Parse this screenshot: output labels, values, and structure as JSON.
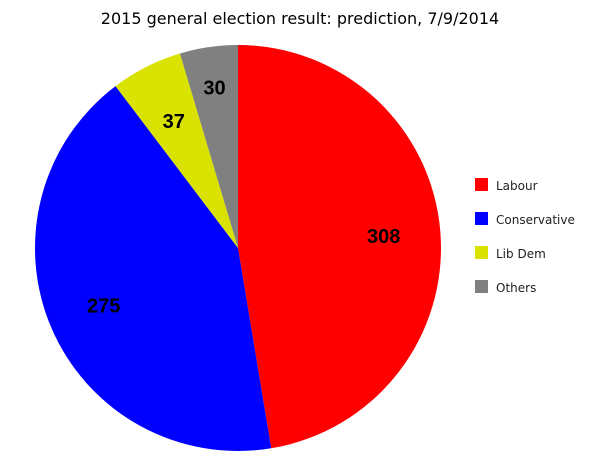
{
  "chart_data": {
    "type": "pie",
    "title": "2015 general election result: prediction, 7/9/2014",
    "categories": [
      "Labour",
      "Conservative",
      "Lib Dem",
      "Others"
    ],
    "values": [
      308,
      275,
      37,
      30
    ],
    "colors": [
      "#ff0000",
      "#0000ff",
      "#d9e200",
      "#808080"
    ],
    "start": "top",
    "direction": "clockwise",
    "legend_placement": "right",
    "data_labels": [
      "308",
      "275",
      "37",
      "30"
    ]
  }
}
